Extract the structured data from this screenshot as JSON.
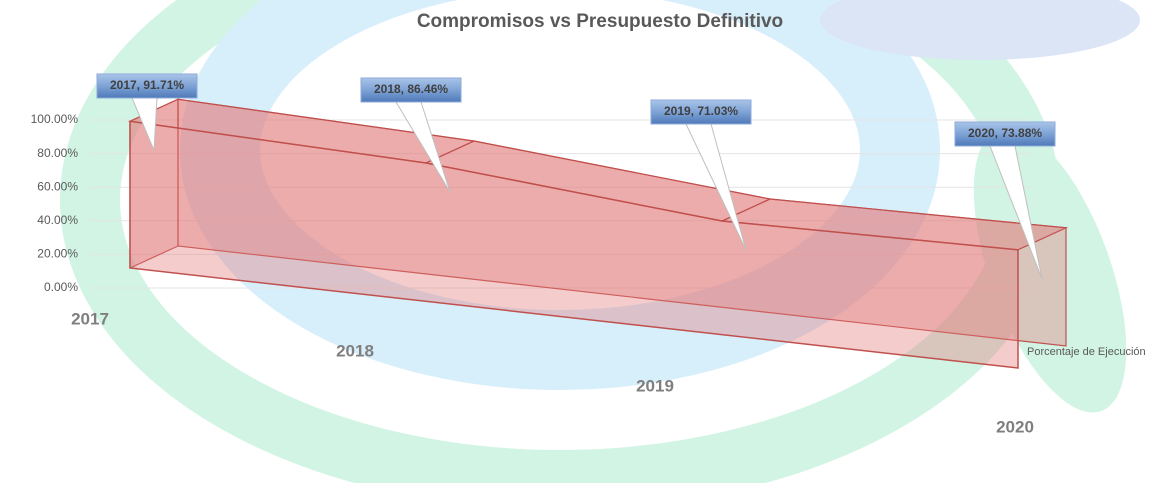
{
  "chart_data": {
    "type": "area3d",
    "title": "Compromisos vs Presupuesto Definitivo",
    "categories": [
      "2017",
      "2018",
      "2019",
      "2020"
    ],
    "series": [
      {
        "name": "Porcentaje de Ejecución",
        "color": "#c0504d",
        "values": [
          91.71,
          86.46,
          71.03,
          73.88
        ],
        "value_labels": [
          "2017, 91.71%",
          "2018, 86.46%",
          "2019, 71.03%",
          "2020, 73.88%"
        ]
      }
    ],
    "ylim": [
      0,
      100
    ],
    "yticks": [
      {
        "value": 0,
        "label": "0.00%"
      },
      {
        "value": 20,
        "label": "20.00%"
      },
      {
        "value": 40,
        "label": "40.00%"
      },
      {
        "value": 60,
        "label": "60.00%"
      },
      {
        "value": 80,
        "label": "80.00%"
      },
      {
        "value": 100,
        "label": "100.00%"
      }
    ],
    "grid": true
  }
}
